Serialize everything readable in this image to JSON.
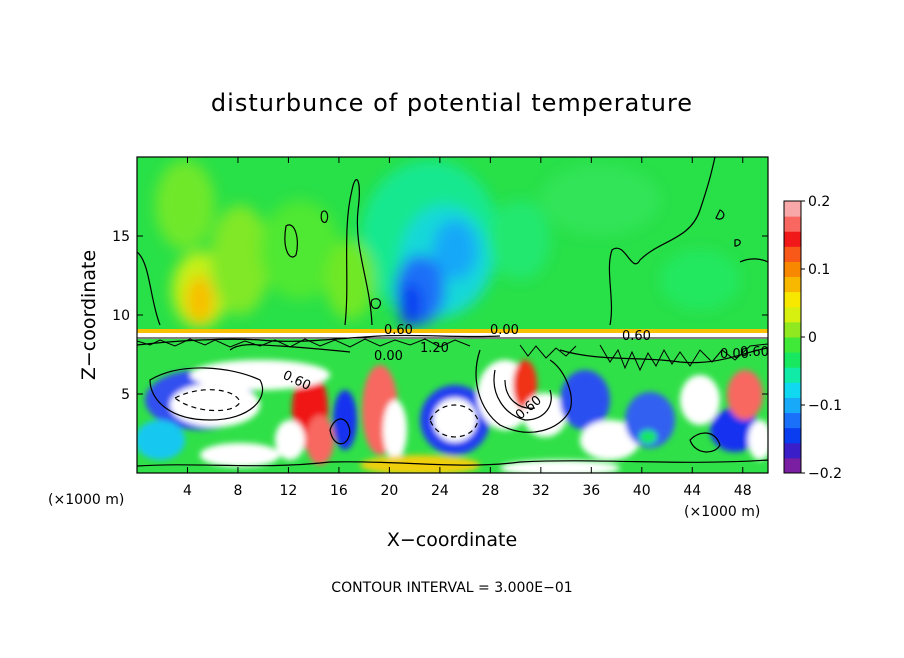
{
  "chart_data": {
    "type": "heatmap",
    "title": "disturbunce of potential temperature",
    "xlabel": "X−coordinate",
    "ylabel": "Z−coordinate",
    "x_unit_left": "(×1000 m)",
    "x_unit_right": "(×1000 m)",
    "xlim": [
      0,
      50
    ],
    "ylim": [
      0,
      20
    ],
    "x_ticks": [
      4,
      8,
      12,
      16,
      20,
      24,
      28,
      32,
      36,
      40,
      44,
      48
    ],
    "x_tick_labels": [
      "4",
      "8",
      "12",
      "16",
      "20",
      "24",
      "28",
      "32",
      "36",
      "40",
      "44",
      "48"
    ],
    "y_ticks": [
      5,
      10,
      15
    ],
    "y_tick_labels": [
      "5",
      "10",
      "15"
    ],
    "colorbar": {
      "range": [
        -0.2,
        0.2
      ],
      "ticks": [
        0.2,
        0.1,
        0,
        -0.1,
        -0.2
      ],
      "tick_labels": [
        "0.2",
        "0.1",
        "0",
        "−0.1",
        "−0.2"
      ],
      "colors": [
        "#7a1fa2",
        "#3a1fc8",
        "#0a3cf0",
        "#1a70f8",
        "#18aaf8",
        "#10d8f0",
        "#10eca8",
        "#18e860",
        "#40e838",
        "#90e820",
        "#d8f010",
        "#f8e800",
        "#f8b800",
        "#f88800",
        "#f85818",
        "#f01818",
        "#f86860",
        "#f8a8a8"
      ]
    },
    "contour_labels": [
      "0.60",
      "0.00",
      "0.60",
      "0.00",
      "1.20",
      "0.60",
      "0.60",
      "0.00",
      "0.60"
    ],
    "contour_interval_text": "CONTOUR INTERVAL = 3.000E−01"
  }
}
